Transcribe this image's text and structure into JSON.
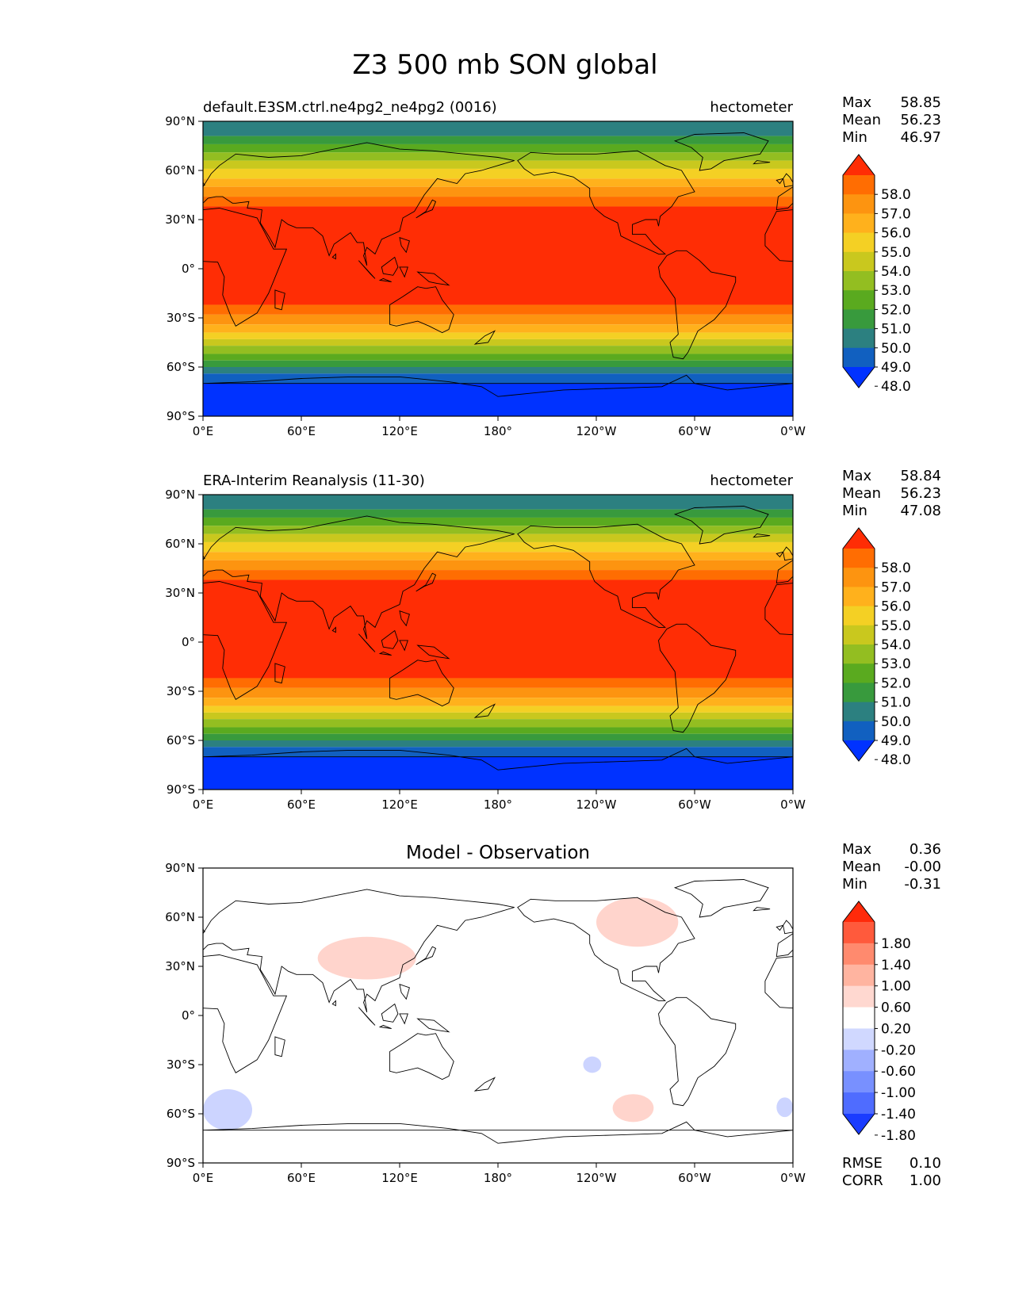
{
  "figure": {
    "title": "Z3 500 mb SON global"
  },
  "panels": [
    {
      "title_left": "default.E3SM.ctrl.ne4pg2_ne4pg2 (0016)",
      "title_center": "",
      "units": "hectometer",
      "stats": [
        {
          "label": "Max",
          "value": "58.85"
        },
        {
          "label": "Mean",
          "value": "56.23"
        },
        {
          "label": "Min",
          "value": "46.97"
        }
      ],
      "extra_stats": []
    },
    {
      "title_left": "ERA-Interim Reanalysis (11-30)",
      "title_center": "",
      "units": "hectometer",
      "stats": [
        {
          "label": "Max",
          "value": "58.84"
        },
        {
          "label": "Mean",
          "value": "56.23"
        },
        {
          "label": "Min",
          "value": "47.08"
        }
      ],
      "extra_stats": []
    },
    {
      "title_left": "",
      "title_center": "Model - Observation",
      "units": "",
      "stats": [
        {
          "label": "Max",
          "value": "0.36"
        },
        {
          "label": "Mean",
          "value": "-0.00"
        },
        {
          "label": "Min",
          "value": "-0.31"
        }
      ],
      "extra_stats": [
        {
          "label": "RMSE",
          "value": "0.10"
        },
        {
          "label": "CORR",
          "value": "1.00"
        }
      ]
    }
  ],
  "chart_data": [
    {
      "type": "heatmap",
      "title": "default.E3SM.ctrl.ne4pg2_ne4pg2 (0016)",
      "units": "hectometer",
      "x_ticks": [
        "0°E",
        "60°E",
        "120°E",
        "180°",
        "120°W",
        "60°W",
        "0°W"
      ],
      "y_ticks": [
        "90°N",
        "60°N",
        "30°N",
        "0°",
        "30°S",
        "60°S",
        "90°S"
      ],
      "xlim": [
        0,
        360
      ],
      "ylim": [
        -90,
        90
      ],
      "colorbar": {
        "levels": [
          "58.0",
          "57.0",
          "56.0",
          "55.0",
          "54.0",
          "53.0",
          "52.0",
          "51.0",
          "50.0",
          "49.0",
          "48.0"
        ],
        "colors": [
          "#ff2d05",
          "#ff6d02",
          "#fd9410",
          "#ffb11c",
          "#f4d024",
          "#c9c81e",
          "#93be21",
          "#5aaa1f",
          "#389a3d",
          "#2c8080",
          "#1160c0",
          "#0032ff"
        ],
        "extend": "both"
      },
      "stats": {
        "max": 58.85,
        "mean": 56.23,
        "min": 46.97
      }
    },
    {
      "type": "heatmap",
      "title": "ERA-Interim Reanalysis (11-30)",
      "units": "hectometer",
      "x_ticks": [
        "0°E",
        "60°E",
        "120°E",
        "180°",
        "120°W",
        "60°W",
        "0°W"
      ],
      "y_ticks": [
        "90°N",
        "60°N",
        "30°N",
        "0°",
        "30°S",
        "60°S",
        "90°S"
      ],
      "xlim": [
        0,
        360
      ],
      "ylim": [
        -90,
        90
      ],
      "colorbar": {
        "levels": [
          "58.0",
          "57.0",
          "56.0",
          "55.0",
          "54.0",
          "53.0",
          "52.0",
          "51.0",
          "50.0",
          "49.0",
          "48.0"
        ],
        "colors": [
          "#ff2d05",
          "#ff6d02",
          "#fd9410",
          "#ffb11c",
          "#f4d024",
          "#c9c81e",
          "#93be21",
          "#5aaa1f",
          "#389a3d",
          "#2c8080",
          "#1160c0",
          "#0032ff"
        ],
        "extend": "both"
      },
      "stats": {
        "max": 58.84,
        "mean": 56.23,
        "min": 47.08
      }
    },
    {
      "type": "heatmap",
      "title": "Model - Observation",
      "units": "",
      "x_ticks": [
        "0°E",
        "60°E",
        "120°E",
        "180°",
        "120°W",
        "60°W",
        "0°W"
      ],
      "y_ticks": [
        "90°N",
        "60°N",
        "30°N",
        "0°",
        "30°S",
        "60°S",
        "90°S"
      ],
      "xlim": [
        0,
        360
      ],
      "ylim": [
        -90,
        90
      ],
      "colorbar": {
        "levels": [
          "1.80",
          "1.40",
          "1.00",
          "0.60",
          "0.20",
          "-0.20",
          "-0.60",
          "-1.00",
          "-1.40",
          "-1.80"
        ],
        "colors": [
          "#ff2a0a",
          "#ff5a3c",
          "#ff8a6e",
          "#ffb4a0",
          "#ffd8d0",
          "#ffffff",
          "#d0d8ff",
          "#a0b0ff",
          "#7890ff",
          "#4f6cff",
          "#1a3cff"
        ],
        "extend": "both"
      },
      "anomalies": [
        {
          "sign": "positive",
          "lon": [
            70,
            130
          ],
          "lat": [
            22,
            48
          ]
        },
        {
          "sign": "positive",
          "lon": [
            240,
            290
          ],
          "lat": [
            42,
            72
          ]
        },
        {
          "sign": "positive",
          "lon": [
            250,
            275
          ],
          "lat": [
            -65,
            -48
          ]
        },
        {
          "sign": "negative",
          "lon": [
            0,
            30
          ],
          "lat": [
            -70,
            -45
          ]
        },
        {
          "sign": "negative",
          "lon": [
            232,
            243
          ],
          "lat": [
            -35,
            -25
          ]
        },
        {
          "sign": "negative",
          "lon": [
            350,
            360
          ],
          "lat": [
            -62,
            -50
          ]
        }
      ],
      "stats": {
        "max": 0.36,
        "mean": -0.0,
        "min": -0.31,
        "rmse": 0.1,
        "corr": 1.0
      }
    }
  ]
}
